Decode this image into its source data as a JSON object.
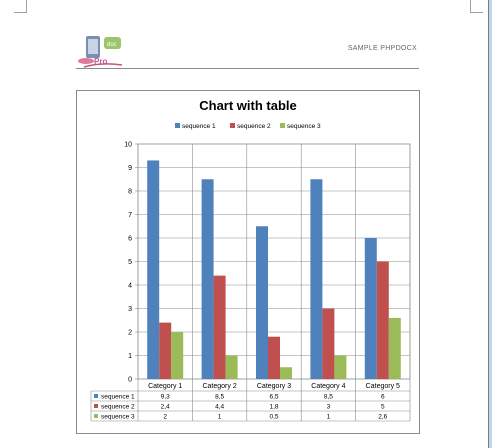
{
  "header": {
    "brand_text": "SAMPLE PHPDOCX"
  },
  "colors": {
    "series1": "#4f81bd",
    "series2": "#c0504d",
    "series3": "#9bbb59"
  },
  "chart_data": {
    "type": "bar",
    "title": "Chart with table",
    "categories": [
      "Category 1",
      "Category 2",
      "Category 3",
      "Category 4",
      "Category 5"
    ],
    "series": [
      {
        "name": "sequence 1",
        "values": [
          9.3,
          8.5,
          6.5,
          8.5,
          6
        ]
      },
      {
        "name": "sequence 2",
        "values": [
          2.4,
          4.4,
          1.8,
          3,
          5
        ]
      },
      {
        "name": "sequence 3",
        "values": [
          2,
          1,
          0.5,
          1,
          2.6
        ]
      }
    ],
    "table_values": [
      [
        "9,3",
        "8,5",
        "6,5",
        "8,5",
        "6"
      ],
      [
        "2,4",
        "4,4",
        "1,8",
        "3",
        "5"
      ],
      [
        "2",
        "1",
        "0,5",
        "1",
        "2,6"
      ]
    ],
    "ylim": [
      0,
      10
    ],
    "yticks": [
      "0",
      "1",
      "2",
      "3",
      "4",
      "5",
      "6",
      "7",
      "8",
      "9",
      "10"
    ],
    "grid": true,
    "legend_position": "top",
    "data_table": true
  }
}
